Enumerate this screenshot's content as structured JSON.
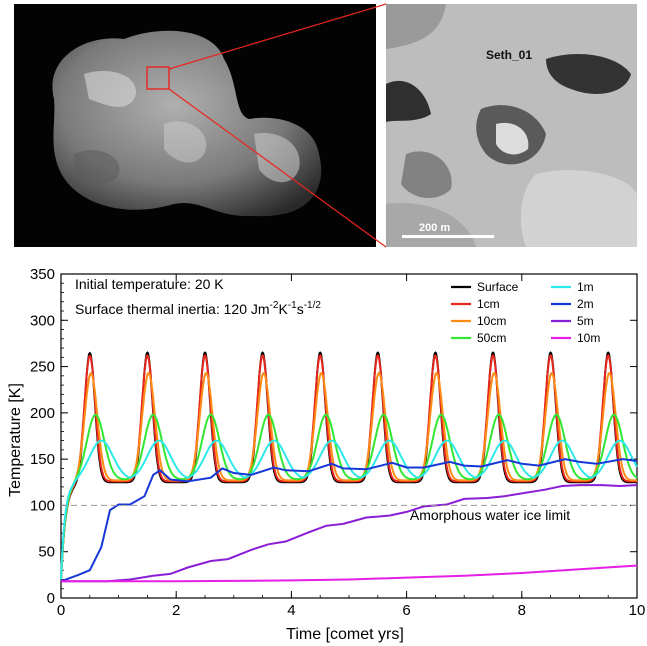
{
  "images": {
    "closeup_label": "Seth_01",
    "scale_bar_label": "200 m"
  },
  "chart_data": {
    "type": "line",
    "annotations": [
      "Initial temperature: 20 K",
      "Surface thermal inertia: 120 Jm⁻²K⁻¹s⁻¹ᐟ²"
    ],
    "annotation_initial_temperature": "Initial temperature: 20 K",
    "annotation_thermal_inertia_prefix": "Surface thermal inertia: 120 Jm",
    "annotation_thermal_inertia_sup1": "-2",
    "annotation_thermal_inertia_mid1": "K",
    "annotation_thermal_inertia_sup2": "-1",
    "annotation_thermal_inertia_mid2": "s",
    "annotation_thermal_inertia_sup3": "-1/2",
    "reference_line_label": "Amorphous water ice limit",
    "reference_line_value": 100,
    "xlabel": "Time [comet yrs]",
    "ylabel": "Temperature [K]",
    "xlim": [
      0,
      10
    ],
    "ylim": [
      0,
      350
    ],
    "xticks": [
      0,
      2,
      4,
      6,
      8,
      10
    ],
    "yticks": [
      0,
      50,
      100,
      150,
      200,
      250,
      300,
      350
    ],
    "legend_placement": "top-right",
    "series": [
      {
        "name": "Surface",
        "color": "#000000",
        "min": 125,
        "max": 265,
        "peak_phase": 0.5,
        "width": 0.09
      },
      {
        "name": "1cm",
        "color": "#e8261d",
        "min": 126,
        "max": 262,
        "peak_phase": 0.5,
        "width": 0.095
      },
      {
        "name": "10cm",
        "color": "#ff8c14",
        "min": 127,
        "max": 243,
        "peak_phase": 0.52,
        "width": 0.11
      },
      {
        "name": "50cm",
        "color": "#32e632",
        "min": 128,
        "max": 198,
        "peak_phase": 0.6,
        "width": 0.15
      },
      {
        "name": "1m",
        "color": "#2de8e8",
        "min": 128,
        "max": 170,
        "peak_phase": 0.7,
        "width": 0.2
      },
      {
        "name": "2m",
        "color": "#1538d6",
        "points": [
          [
            0,
            18
          ],
          [
            0.3,
            25
          ],
          [
            0.5,
            30
          ],
          [
            0.7,
            55
          ],
          [
            0.85,
            95
          ],
          [
            1.0,
            101
          ],
          [
            1.2,
            101
          ],
          [
            1.45,
            110
          ],
          [
            1.6,
            133
          ],
          [
            1.72,
            138
          ],
          [
            1.9,
            128
          ],
          [
            2.2,
            126
          ],
          [
            2.6,
            130
          ],
          [
            2.8,
            140
          ],
          [
            3.0,
            135
          ],
          [
            3.3,
            133
          ],
          [
            3.7,
            141
          ],
          [
            3.9,
            138
          ],
          [
            4.3,
            137
          ],
          [
            4.7,
            145
          ],
          [
            4.9,
            140
          ],
          [
            5.3,
            139
          ],
          [
            5.75,
            146
          ],
          [
            6.0,
            141
          ],
          [
            6.3,
            141
          ],
          [
            6.75,
            147
          ],
          [
            7.0,
            143
          ],
          [
            7.3,
            142
          ],
          [
            7.75,
            149
          ],
          [
            8.0,
            145
          ],
          [
            8.3,
            143
          ],
          [
            8.75,
            150
          ],
          [
            9.0,
            147
          ],
          [
            9.3,
            145
          ],
          [
            9.75,
            150
          ],
          [
            10.0,
            148
          ]
        ]
      },
      {
        "name": "5m",
        "color": "#8a1ed6",
        "points": [
          [
            0,
            18
          ],
          [
            0.8,
            18
          ],
          [
            1.2,
            20
          ],
          [
            1.6,
            24
          ],
          [
            1.9,
            26
          ],
          [
            2.2,
            33
          ],
          [
            2.6,
            40
          ],
          [
            2.9,
            42
          ],
          [
            3.3,
            52
          ],
          [
            3.6,
            58
          ],
          [
            3.9,
            61
          ],
          [
            4.3,
            71
          ],
          [
            4.6,
            78
          ],
          [
            4.9,
            80
          ],
          [
            5.3,
            87
          ],
          [
            5.7,
            89
          ],
          [
            6.0,
            93
          ],
          [
            6.3,
            99
          ],
          [
            6.7,
            101
          ],
          [
            7.0,
            107
          ],
          [
            7.4,
            108
          ],
          [
            7.7,
            110
          ],
          [
            8.0,
            113
          ],
          [
            8.4,
            117
          ],
          [
            8.7,
            121
          ],
          [
            9.0,
            122
          ],
          [
            9.4,
            122
          ],
          [
            9.7,
            121
          ],
          [
            10.0,
            122
          ]
        ]
      },
      {
        "name": "10m",
        "color": "#e61ee6",
        "points": [
          [
            0,
            18
          ],
          [
            1,
            18
          ],
          [
            2,
            18
          ],
          [
            3,
            18.5
          ],
          [
            4,
            19
          ],
          [
            5,
            20
          ],
          [
            6,
            22
          ],
          [
            7,
            24
          ],
          [
            8,
            27
          ],
          [
            9,
            31
          ],
          [
            10,
            35
          ]
        ]
      }
    ]
  }
}
